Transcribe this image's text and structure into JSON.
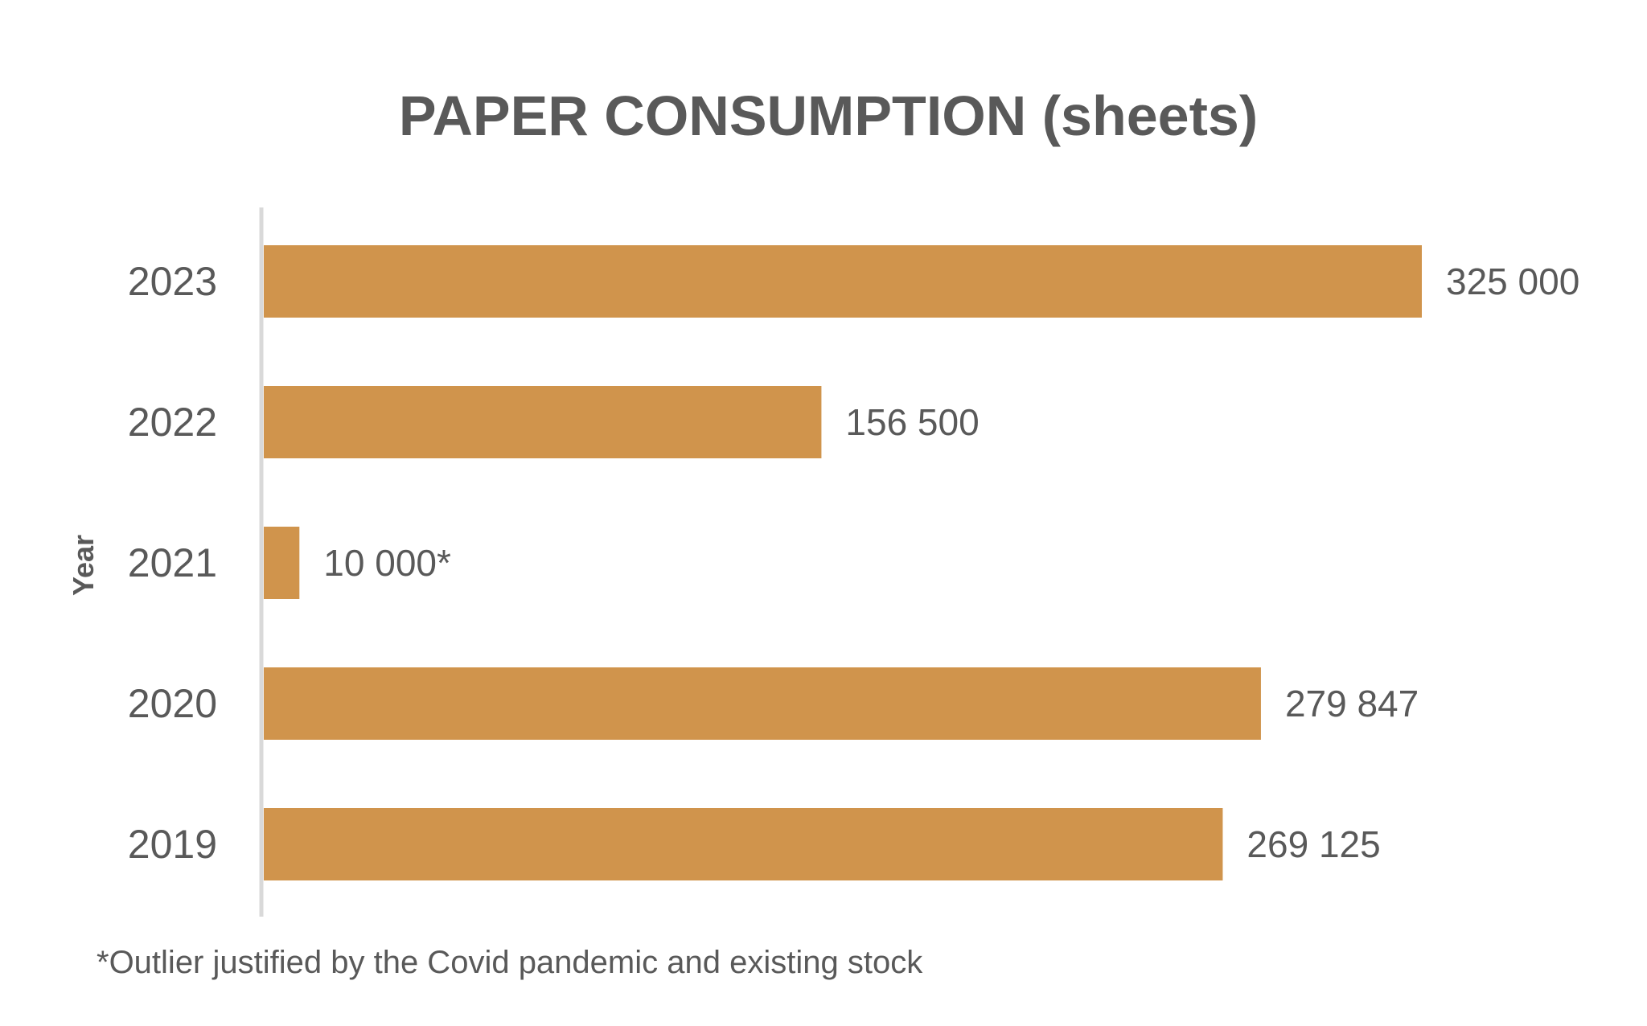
{
  "colors": {
    "bar": "#D0944C",
    "text": "#595959",
    "axis_line": "#D9D9D9",
    "background": "#FFFFFF"
  },
  "chart_data": {
    "type": "bar",
    "orientation": "horizontal",
    "title": "PAPER CONSUMPTION (sheets)",
    "xlabel": "",
    "ylabel": "Year",
    "categories": [
      "2023",
      "2022",
      "2021",
      "2020",
      "2019"
    ],
    "values": [
      325000,
      156500,
      10000,
      279847,
      269125
    ],
    "data_labels": [
      "325 000",
      "156 500",
      "10 000*",
      "279 847",
      "269 125"
    ],
    "xlim": [
      0,
      325000
    ],
    "grid": false,
    "legend": "none"
  },
  "footnote": "*Outlier justified by the Covid pandemic and existing stock"
}
